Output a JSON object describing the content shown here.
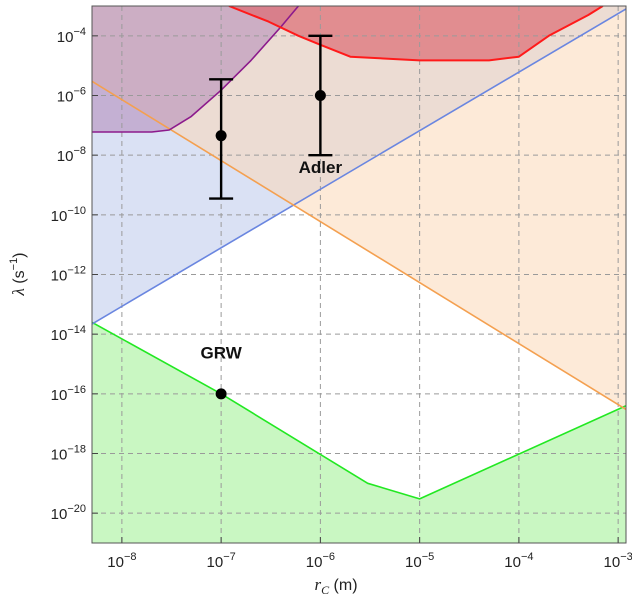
{
  "chart_data": {
    "type": "area",
    "title": "",
    "xlabel": {
      "main": "r",
      "sub": "C",
      "unit": " (m)"
    },
    "ylabel": {
      "main": "λ",
      "unit": " (s",
      "exp": "−1",
      "close": ")"
    },
    "x_scale": "log",
    "y_scale": "log",
    "xlim": [
      5e-09,
      0.0012
    ],
    "ylim": [
      1e-21,
      0.001
    ],
    "x_ticks": [
      {
        "value": 1e-08,
        "base": "10",
        "exp": "−8"
      },
      {
        "value": 1e-07,
        "base": "10",
        "exp": "−7"
      },
      {
        "value": 1e-06,
        "base": "10",
        "exp": "−6"
      },
      {
        "value": 1e-05,
        "base": "10",
        "exp": "−5"
      },
      {
        "value": 0.0001,
        "base": "10",
        "exp": "−4"
      },
      {
        "value": 0.001,
        "base": "10",
        "exp": "−3"
      }
    ],
    "y_ticks": [
      {
        "value": 1e-20,
        "base": "10",
        "exp": "−20"
      },
      {
        "value": 1e-18,
        "base": "10",
        "exp": "−18"
      },
      {
        "value": 1e-16,
        "base": "10",
        "exp": "−16"
      },
      {
        "value": 1e-14,
        "base": "10",
        "exp": "−14"
      },
      {
        "value": 1e-12,
        "base": "10",
        "exp": "−12"
      },
      {
        "value": 1e-10,
        "base": "10",
        "exp": "−10"
      },
      {
        "value": 1e-08,
        "base": "10",
        "exp": "−8"
      },
      {
        "value": 1e-06,
        "base": "10",
        "exp": "−6"
      },
      {
        "value": 0.0001,
        "base": "10",
        "exp": "−4"
      }
    ],
    "grid": true,
    "regions": [
      {
        "fill": "#e8f3fd",
        "boundary": "green_curve",
        "side": "below",
        "fill_color": "#c9f7c2",
        "line_color": "#22e822",
        "opacity": 1
      },
      {
        "fill": "#dfe6f5",
        "boundary": "blue_line",
        "side": "above",
        "fill_color": "#cdd7f0",
        "line_color": "#6a86e0",
        "opacity": 0.75
      },
      {
        "fill": "#fde3cc",
        "boundary": "orange_line",
        "side": "above",
        "fill_color": "#fbd9b8",
        "line_color": "#f4a050",
        "opacity": 0.55
      },
      {
        "fill": "#c8a6cc",
        "boundary": "purple_curve",
        "side": "above",
        "fill_color": "#b288b8",
        "line_color": "#8c1a8c",
        "opacity": 0.55
      },
      {
        "fill": "#de7e84",
        "boundary": "red_curve",
        "side": "above",
        "fill_color": "#dd6b73",
        "line_color": "#ff1a1a",
        "opacity": 0.7
      }
    ],
    "lines": {
      "green_curve": [
        [
          5e-09,
          2.5e-14
        ],
        [
          1e-07,
          1e-16
        ],
        [
          3e-06,
          1e-19
        ],
        [
          1e-05,
          3e-20
        ],
        [
          0.0012,
          4e-17
        ]
      ],
      "blue_line": [
        [
          5e-09,
          2.2e-14
        ],
        [
          0.0012,
          0.0008
        ]
      ],
      "orange_line": [
        [
          5e-09,
          3e-06
        ],
        [
          0.0012,
          3e-17
        ]
      ],
      "purple_curve": [
        [
          5e-09,
          6e-08
        ],
        [
          2e-08,
          6e-08
        ],
        [
          3e-08,
          7e-08
        ],
        [
          5e-08,
          2e-07
        ],
        [
          1e-07,
          1.5e-06
        ],
        [
          2e-07,
          1.5e-05
        ],
        [
          4e-07,
          0.0002
        ],
        [
          6e-07,
          0.001
        ]
      ],
      "red_curve": [
        [
          1.2e-07,
          0.001
        ],
        [
          3e-07,
          0.0003
        ],
        [
          6e-07,
          0.0001
        ],
        [
          1e-06,
          5e-05
        ],
        [
          2e-06,
          2e-05
        ],
        [
          1e-05,
          1.5e-05
        ],
        [
          5e-05,
          1.5e-05
        ],
        [
          0.0001,
          2e-05
        ],
        [
          0.0002,
          0.0001
        ],
        [
          0.0005,
          0.0005
        ],
        [
          0.0007,
          0.001
        ]
      ]
    },
    "points": [
      {
        "label": "",
        "x": 1e-07,
        "y": 4.5e-08,
        "err_low": 3.5e-10,
        "err_high": 3.5e-06
      },
      {
        "label": "",
        "x": 1e-06,
        "y": 1e-06,
        "err_low": 1e-08,
        "err_high": 0.0001
      },
      {
        "label": "GRW",
        "x": 1e-07,
        "y": 1e-16
      }
    ],
    "annotations": [
      {
        "text": "Adler",
        "x": 1e-06,
        "y": 2.5e-09
      },
      {
        "text": "GRW",
        "x": 1e-07,
        "y": 1.5e-15
      }
    ]
  }
}
